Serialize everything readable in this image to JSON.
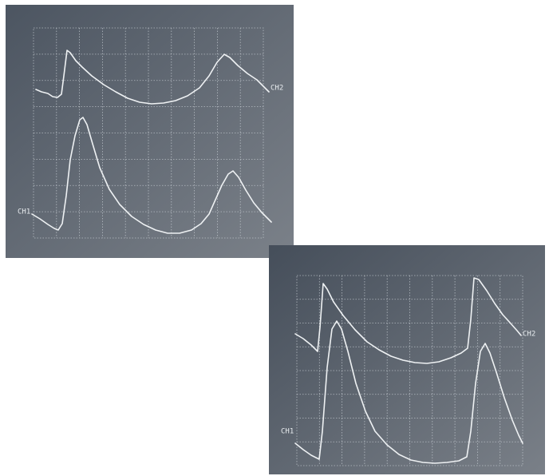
{
  "panels": [
    {
      "labels": [
        "CH2",
        "CH1"
      ]
    },
    {
      "labels": [
        "CH2",
        "CH1"
      ]
    }
  ]
}
